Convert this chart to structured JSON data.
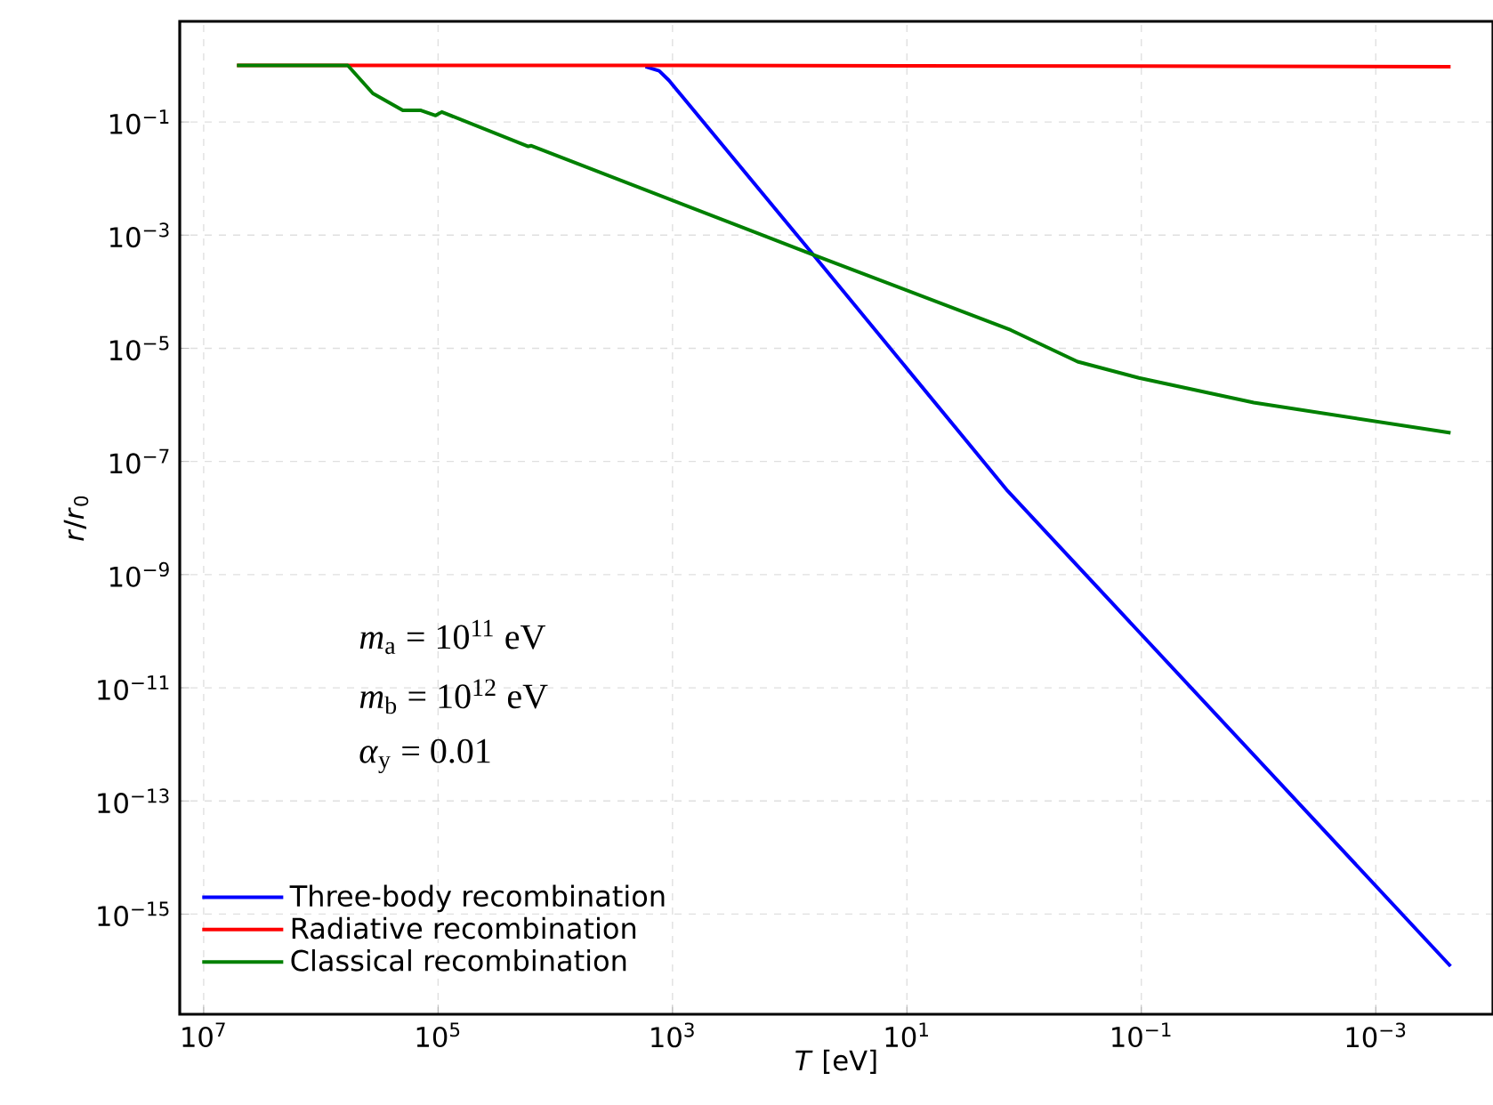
{
  "chart_data": {
    "type": "line",
    "xlabel": "*T* [eV]",
    "ylabel": "*r*/*r*$_{0}$",
    "log": "xy",
    "grid": true,
    "legend": "bottom left",
    "marker": "none",
    "line_style": "solid",
    "xlim": [
      16000000.0,
      0.0001
    ],
    "ylim": [
      1.7e-17,
      6
    ],
    "xticks": [
      {
        "value": 10000000.0,
        "label": "10$^{7}$"
      },
      {
        "value": 100000.0,
        "label": "10$^{5}$"
      },
      {
        "value": 1000.0,
        "label": "10$^{3}$"
      },
      {
        "value": 10.0,
        "label": "10$^{1}$"
      },
      {
        "value": 0.1,
        "label": "10$^{−1}$"
      },
      {
        "value": 0.001,
        "label": "10$^{−3}$"
      }
    ],
    "yticks": [
      {
        "value": 0.1,
        "label": "10$^{−1}$"
      },
      {
        "value": 0.001,
        "label": "10$^{−3}$"
      },
      {
        "value": 1e-05,
        "label": "10$^{−5}$"
      },
      {
        "value": 1e-07,
        "label": "10$^{−7}$"
      },
      {
        "value": 1e-09,
        "label": "10$^{−9}$"
      },
      {
        "value": 1e-11,
        "label": "10$^{−11}$"
      },
      {
        "value": 1e-13,
        "label": "10$^{−13}$"
      },
      {
        "value": 1e-15,
        "label": "10$^{−15}$"
      }
    ],
    "annotations": [
      "*m*$_{a}$ = 10$^{11}$ eV",
      "*m*$_{b}$ = 10$^{12}$ eV",
      "*α*$_{y}$ = 0.01"
    ],
    "series": [
      {
        "name": "Three-body recombination",
        "color": "#0000ff",
        "x": [
          1700.0,
          1300.0,
          1070.0,
          63,
          1.38,
          0.00023
        ],
        "values": [
          0.95,
          0.8,
          0.54,
          0.00045,
          3e-08,
          1.2e-16
        ]
      },
      {
        "name": "Radiative recombination",
        "color": "#ff0000",
        "x": [
          5200000.0,
          1000.0,
          0.00023
        ],
        "values": [
          1.0,
          1.0,
          0.95
        ]
      },
      {
        "name": "Classical recombination",
        "color": "#008000",
        "x": [
          5200000.0,
          590000.0,
          360000.0,
          200000.0,
          140000.0,
          105000.0,
          93000.0,
          17000.0,
          16000.0,
          63,
          1.3,
          0.35,
          0.105,
          0.011,
          0.00023
        ],
        "values": [
          1.0,
          1.0,
          0.32,
          0.16,
          0.16,
          0.13,
          0.15,
          0.037,
          0.038,
          0.00045,
          2.1e-05,
          5.8e-06,
          3e-06,
          1.1e-06,
          3.2e-07
        ]
      }
    ]
  }
}
